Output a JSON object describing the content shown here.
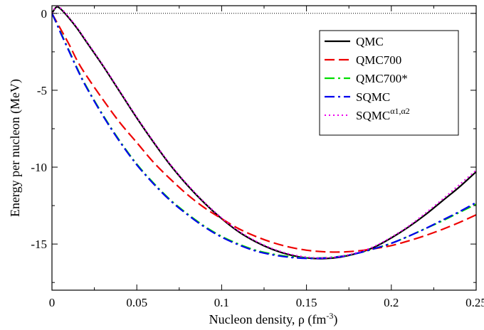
{
  "chart_data": {
    "type": "line",
    "xlabel": "Nucleon density, ρ (fm",
    "xlabel_sup": "-3",
    "xlabel_suffix": ")",
    "ylabel": "Energy per nucleon (MeV)",
    "xlim": [
      0,
      0.25
    ],
    "ylim": [
      -18,
      0.5
    ],
    "x_ticks": [
      0,
      0.05,
      0.1,
      0.15,
      0.2,
      0.25
    ],
    "x_tick_labels": [
      "0",
      "0.05",
      "0.1",
      "0.15",
      "0.2",
      "0.25"
    ],
    "y_ticks": [
      0,
      -5,
      -10,
      -15
    ],
    "y_tick_labels": [
      "0",
      "-5",
      "-10",
      "-15"
    ],
    "grid": false,
    "reference_line": {
      "y": 0,
      "style": "dotted"
    },
    "legend_position": "top-right",
    "x": [
      0,
      0.0025,
      0.005,
      0.01,
      0.015,
      0.02,
      0.03,
      0.04,
      0.05,
      0.06,
      0.07,
      0.08,
      0.09,
      0.1,
      0.11,
      0.12,
      0.13,
      0.14,
      0.15,
      0.16,
      0.17,
      0.18,
      0.19,
      0.2,
      0.21,
      0.22,
      0.23,
      0.24,
      0.25
    ],
    "series": [
      {
        "name": "QMC",
        "color": "#000000",
        "dash": "",
        "width": 2.2,
        "values": [
          0,
          0.4,
          0.3,
          -0.3,
          -1.0,
          -1.8,
          -3.4,
          -5.1,
          -6.8,
          -8.4,
          -9.9,
          -11.2,
          -12.35,
          -13.35,
          -14.2,
          -14.85,
          -15.35,
          -15.7,
          -15.9,
          -15.95,
          -15.85,
          -15.6,
          -15.2,
          -14.6,
          -13.9,
          -13.1,
          -12.2,
          -11.3,
          -10.3
        ]
      },
      {
        "name": "QMC700",
        "color": "#ee0000",
        "dash": "14,6",
        "width": 2.2,
        "values": [
          0,
          -0.5,
          -1.0,
          -2.0,
          -3.1,
          -4.0,
          -5.6,
          -7.1,
          -8.4,
          -9.7,
          -10.8,
          -11.8,
          -12.65,
          -13.35,
          -14.0,
          -14.5,
          -14.9,
          -15.2,
          -15.4,
          -15.5,
          -15.52,
          -15.45,
          -15.3,
          -15.1,
          -14.8,
          -14.45,
          -14.05,
          -13.6,
          -13.1
        ]
      },
      {
        "name": "QMC700*",
        "color": "#00dd00",
        "dash": "14,5,3,5",
        "width": 2.2,
        "values": [
          0,
          -0.6,
          -1.2,
          -2.4,
          -3.6,
          -4.7,
          -6.6,
          -8.3,
          -9.8,
          -11.05,
          -12.15,
          -13.05,
          -13.85,
          -14.5,
          -15.0,
          -15.4,
          -15.65,
          -15.82,
          -15.9,
          -15.9,
          -15.8,
          -15.6,
          -15.3,
          -14.95,
          -14.5,
          -14.0,
          -13.5,
          -12.95,
          -12.4
        ]
      },
      {
        "name": "SQMC",
        "color": "#0000ee",
        "dash": "14,5,3,5",
        "width": 2.2,
        "values": [
          0,
          -0.6,
          -1.25,
          -2.45,
          -3.65,
          -4.75,
          -6.65,
          -8.35,
          -9.85,
          -11.1,
          -12.2,
          -13.1,
          -13.9,
          -14.55,
          -15.05,
          -15.45,
          -15.7,
          -15.86,
          -15.93,
          -15.92,
          -15.82,
          -15.6,
          -15.3,
          -14.95,
          -14.5,
          -14.0,
          -13.45,
          -12.9,
          -12.3
        ]
      },
      {
        "name": "SQMC",
        "sup": "α1,α2",
        "color": "#ee00ee",
        "dash": "2,4",
        "width": 2.0,
        "values": [
          0,
          0.45,
          0.35,
          -0.25,
          -0.95,
          -1.75,
          -3.35,
          -5.05,
          -6.75,
          -8.35,
          -9.85,
          -11.15,
          -12.3,
          -13.3,
          -14.15,
          -14.8,
          -15.3,
          -15.65,
          -15.85,
          -15.9,
          -15.8,
          -15.55,
          -15.15,
          -14.55,
          -13.85,
          -13.0,
          -12.1,
          -11.15,
          -10.2
        ]
      }
    ]
  }
}
